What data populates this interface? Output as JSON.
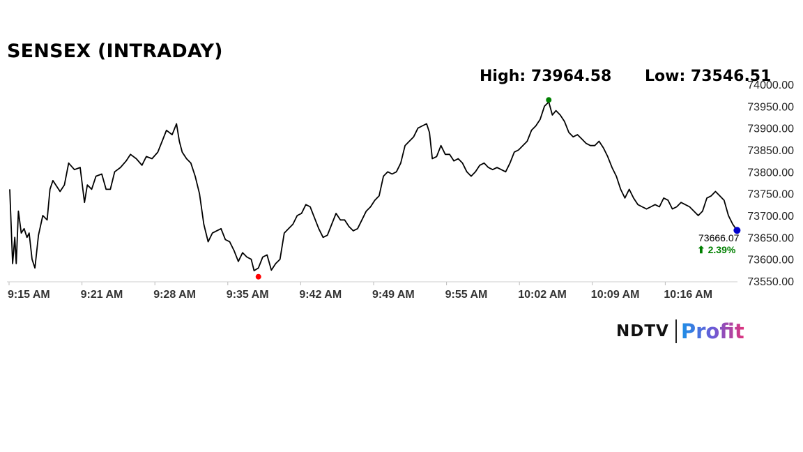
{
  "title": "SENSEX (INTRADAY)",
  "high_text": "High: 73964.58",
  "low_text": "Low: 73546.51",
  "last_value_label": "73666.07",
  "change_label": "⬆ 2.39%",
  "colors": {
    "line": "#000000",
    "high_marker": "#008000",
    "low_marker": "#ff0000",
    "last_marker": "#0000cc",
    "change": "#008000",
    "axis": "#cccccc"
  },
  "logo": {
    "left": "NDTV",
    "right": "Profit"
  },
  "chart_data": {
    "type": "line",
    "title": "SENSEX (INTRADAY)",
    "xlabel": "",
    "ylabel": "",
    "x_ticks": [
      "9:15 AM",
      "9:21 AM",
      "9:28 AM",
      "9:35 AM",
      "9:42 AM",
      "9:49 AM",
      "9:55 AM",
      "10:02 AM",
      "10:09 AM",
      "10:16 AM"
    ],
    "y_ticks": [
      "73550.00",
      "73600.00",
      "73650.00",
      "73700.00",
      "73750.00",
      "73800.00",
      "73850.00",
      "73900.00",
      "73950.00",
      "74000.00"
    ],
    "ylim": [
      73550,
      74000
    ],
    "xlim": [
      0,
      1.0
    ],
    "grid": false,
    "series": [
      {
        "values": [
          [
            0.0,
            73760
          ],
          [
            0.004,
            73590
          ],
          [
            0.007,
            73650
          ],
          [
            0.009,
            73590
          ],
          [
            0.012,
            73710
          ],
          [
            0.016,
            73660
          ],
          [
            0.02,
            73670
          ],
          [
            0.024,
            73650
          ],
          [
            0.027,
            73660
          ],
          [
            0.031,
            73600
          ],
          [
            0.035,
            73580
          ],
          [
            0.04,
            73655
          ],
          [
            0.046,
            73700
          ],
          [
            0.052,
            73690
          ],
          [
            0.056,
            73760
          ],
          [
            0.06,
            73780
          ],
          [
            0.064,
            73770
          ],
          [
            0.07,
            73755
          ],
          [
            0.076,
            73770
          ],
          [
            0.082,
            73820
          ],
          [
            0.09,
            73805
          ],
          [
            0.098,
            73810
          ],
          [
            0.104,
            73730
          ],
          [
            0.108,
            73770
          ],
          [
            0.114,
            73760
          ],
          [
            0.12,
            73790
          ],
          [
            0.128,
            73795
          ],
          [
            0.134,
            73760
          ],
          [
            0.14,
            73760
          ],
          [
            0.146,
            73800
          ],
          [
            0.154,
            73810
          ],
          [
            0.162,
            73825
          ],
          [
            0.168,
            73840
          ],
          [
            0.176,
            73830
          ],
          [
            0.184,
            73815
          ],
          [
            0.19,
            73835
          ],
          [
            0.198,
            73830
          ],
          [
            0.206,
            73845
          ],
          [
            0.212,
            73870
          ],
          [
            0.218,
            73895
          ],
          [
            0.226,
            73885
          ],
          [
            0.232,
            73910
          ],
          [
            0.236,
            73870
          ],
          [
            0.24,
            73845
          ],
          [
            0.246,
            73830
          ],
          [
            0.252,
            73820
          ],
          [
            0.258,
            73790
          ],
          [
            0.264,
            73750
          ],
          [
            0.27,
            73680
          ],
          [
            0.276,
            73640
          ],
          [
            0.282,
            73660
          ],
          [
            0.288,
            73665
          ],
          [
            0.294,
            73670
          ],
          [
            0.3,
            73645
          ],
          [
            0.306,
            73640
          ],
          [
            0.312,
            73620
          ],
          [
            0.318,
            73595
          ],
          [
            0.324,
            73615
          ],
          [
            0.33,
            73605
          ],
          [
            0.336,
            73600
          ],
          [
            0.34,
            73574
          ],
          [
            0.346,
            73580
          ],
          [
            0.352,
            73605
          ],
          [
            0.358,
            73610
          ],
          [
            0.364,
            73575
          ],
          [
            0.37,
            73590
          ],
          [
            0.376,
            73600
          ],
          [
            0.382,
            73660
          ],
          [
            0.388,
            73670
          ],
          [
            0.394,
            73680
          ],
          [
            0.4,
            73700
          ],
          [
            0.406,
            73705
          ],
          [
            0.412,
            73725
          ],
          [
            0.418,
            73720
          ],
          [
            0.424,
            73695
          ],
          [
            0.43,
            73670
          ],
          [
            0.436,
            73650
          ],
          [
            0.442,
            73655
          ],
          [
            0.448,
            73680
          ],
          [
            0.454,
            73705
          ],
          [
            0.46,
            73690
          ],
          [
            0.466,
            73690
          ],
          [
            0.472,
            73675
          ],
          [
            0.478,
            73665
          ],
          [
            0.484,
            73670
          ],
          [
            0.49,
            73690
          ],
          [
            0.496,
            73710
          ],
          [
            0.502,
            73720
          ],
          [
            0.508,
            73735
          ],
          [
            0.514,
            73745
          ],
          [
            0.52,
            73790
          ],
          [
            0.526,
            73800
          ],
          [
            0.532,
            73795
          ],
          [
            0.538,
            73800
          ],
          [
            0.544,
            73820
          ],
          [
            0.55,
            73860
          ],
          [
            0.556,
            73870
          ],
          [
            0.562,
            73880
          ],
          [
            0.568,
            73900
          ],
          [
            0.574,
            73905
          ],
          [
            0.58,
            73910
          ],
          [
            0.584,
            73890
          ],
          [
            0.588,
            73830
          ],
          [
            0.594,
            73835
          ],
          [
            0.6,
            73860
          ],
          [
            0.606,
            73840
          ],
          [
            0.612,
            73840
          ],
          [
            0.618,
            73825
          ],
          [
            0.624,
            73830
          ],
          [
            0.63,
            73820
          ],
          [
            0.636,
            73800
          ],
          [
            0.642,
            73790
          ],
          [
            0.648,
            73800
          ],
          [
            0.654,
            73815
          ],
          [
            0.66,
            73820
          ],
          [
            0.666,
            73810
          ],
          [
            0.672,
            73805
          ],
          [
            0.678,
            73810
          ],
          [
            0.684,
            73805
          ],
          [
            0.69,
            73800
          ],
          [
            0.696,
            73820
          ],
          [
            0.702,
            73845
          ],
          [
            0.708,
            73850
          ],
          [
            0.714,
            73860
          ],
          [
            0.72,
            73870
          ],
          [
            0.726,
            73895
          ],
          [
            0.732,
            73905
          ],
          [
            0.738,
            73920
          ],
          [
            0.744,
            73950
          ],
          [
            0.75,
            73960
          ],
          [
            0.755,
            73930
          ],
          [
            0.76,
            73940
          ],
          [
            0.766,
            73930
          ],
          [
            0.772,
            73915
          ],
          [
            0.778,
            73890
          ],
          [
            0.784,
            73880
          ],
          [
            0.79,
            73885
          ],
          [
            0.796,
            73875
          ],
          [
            0.802,
            73865
          ],
          [
            0.808,
            73860
          ],
          [
            0.814,
            73860
          ],
          [
            0.82,
            73870
          ],
          [
            0.826,
            73855
          ],
          [
            0.832,
            73835
          ],
          [
            0.838,
            73810
          ],
          [
            0.844,
            73790
          ],
          [
            0.85,
            73760
          ],
          [
            0.856,
            73740
          ],
          [
            0.862,
            73760
          ],
          [
            0.868,
            73740
          ],
          [
            0.874,
            73725
          ],
          [
            0.88,
            73720
          ],
          [
            0.886,
            73715
          ],
          [
            0.892,
            73720
          ],
          [
            0.898,
            73725
          ],
          [
            0.904,
            73720
          ],
          [
            0.91,
            73740
          ],
          [
            0.916,
            73735
          ],
          [
            0.922,
            73715
          ],
          [
            0.928,
            73720
          ],
          [
            0.934,
            73730
          ],
          [
            0.94,
            73725
          ],
          [
            0.946,
            73720
          ],
          [
            0.952,
            73710
          ],
          [
            0.958,
            73700
          ],
          [
            0.964,
            73710
          ],
          [
            0.97,
            73740
          ],
          [
            0.976,
            73745
          ],
          [
            0.982,
            73755
          ],
          [
            0.988,
            73745
          ],
          [
            0.994,
            73735
          ],
          [
            1.0,
            73700
          ],
          [
            1.006,
            73680
          ],
          [
            1.012,
            73666.07
          ]
        ]
      }
    ],
    "high": {
      "x": 0.75,
      "value": 73964.58
    },
    "low": {
      "x": 0.346,
      "value": 73546.51
    },
    "last": {
      "x": 1.012,
      "value": 73666.07
    }
  }
}
